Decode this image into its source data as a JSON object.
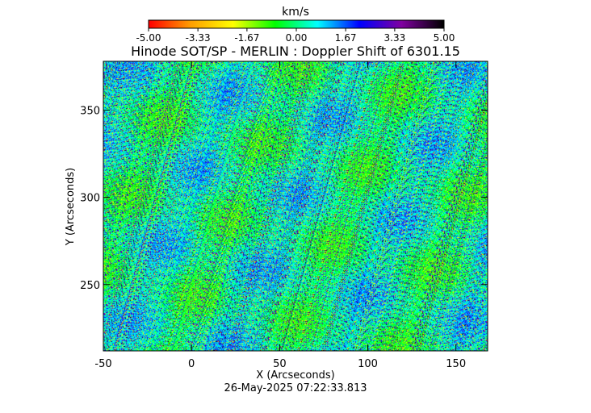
{
  "chart_data": {
    "type": "heatmap",
    "title": "Hinode SOT/SP - MERLIN : Doppler Shift of 6301.15",
    "xlabel": "X (Arcseconds)",
    "ylabel": "Y (Arcseconds)",
    "xlim": [
      -50,
      168
    ],
    "ylim": [
      212,
      378
    ],
    "xticks": [
      -50,
      0,
      50,
      100,
      150
    ],
    "yticks": [
      250,
      300,
      350
    ],
    "xtick_labels": [
      "-50",
      "0",
      "50",
      "100",
      "150"
    ],
    "ytick_labels": [
      "250",
      "300",
      "350"
    ],
    "colorbar": {
      "label": "km/s",
      "range": [
        -5.0,
        5.0
      ],
      "tick_values": [
        -5.0,
        -3.33,
        -1.67,
        0.0,
        1.67,
        3.33,
        5.0
      ],
      "tick_labels": [
        "-5.00",
        "-3.33",
        "-1.67",
        "0.00",
        "1.67",
        "3.33",
        "5.00"
      ],
      "colormap": [
        "#ff0000",
        "#ffa000",
        "#ffff00",
        "#00ff00",
        "#00ffff",
        "#0000ff",
        "#8000a0",
        "#000000"
      ]
    },
    "field_description": "noisy Doppler velocity map, values mostly near 0 km/s with scattered blue (+) and yellow/orange (-) pixels",
    "timestamp": "26-May-2025 07:22:33.813"
  }
}
